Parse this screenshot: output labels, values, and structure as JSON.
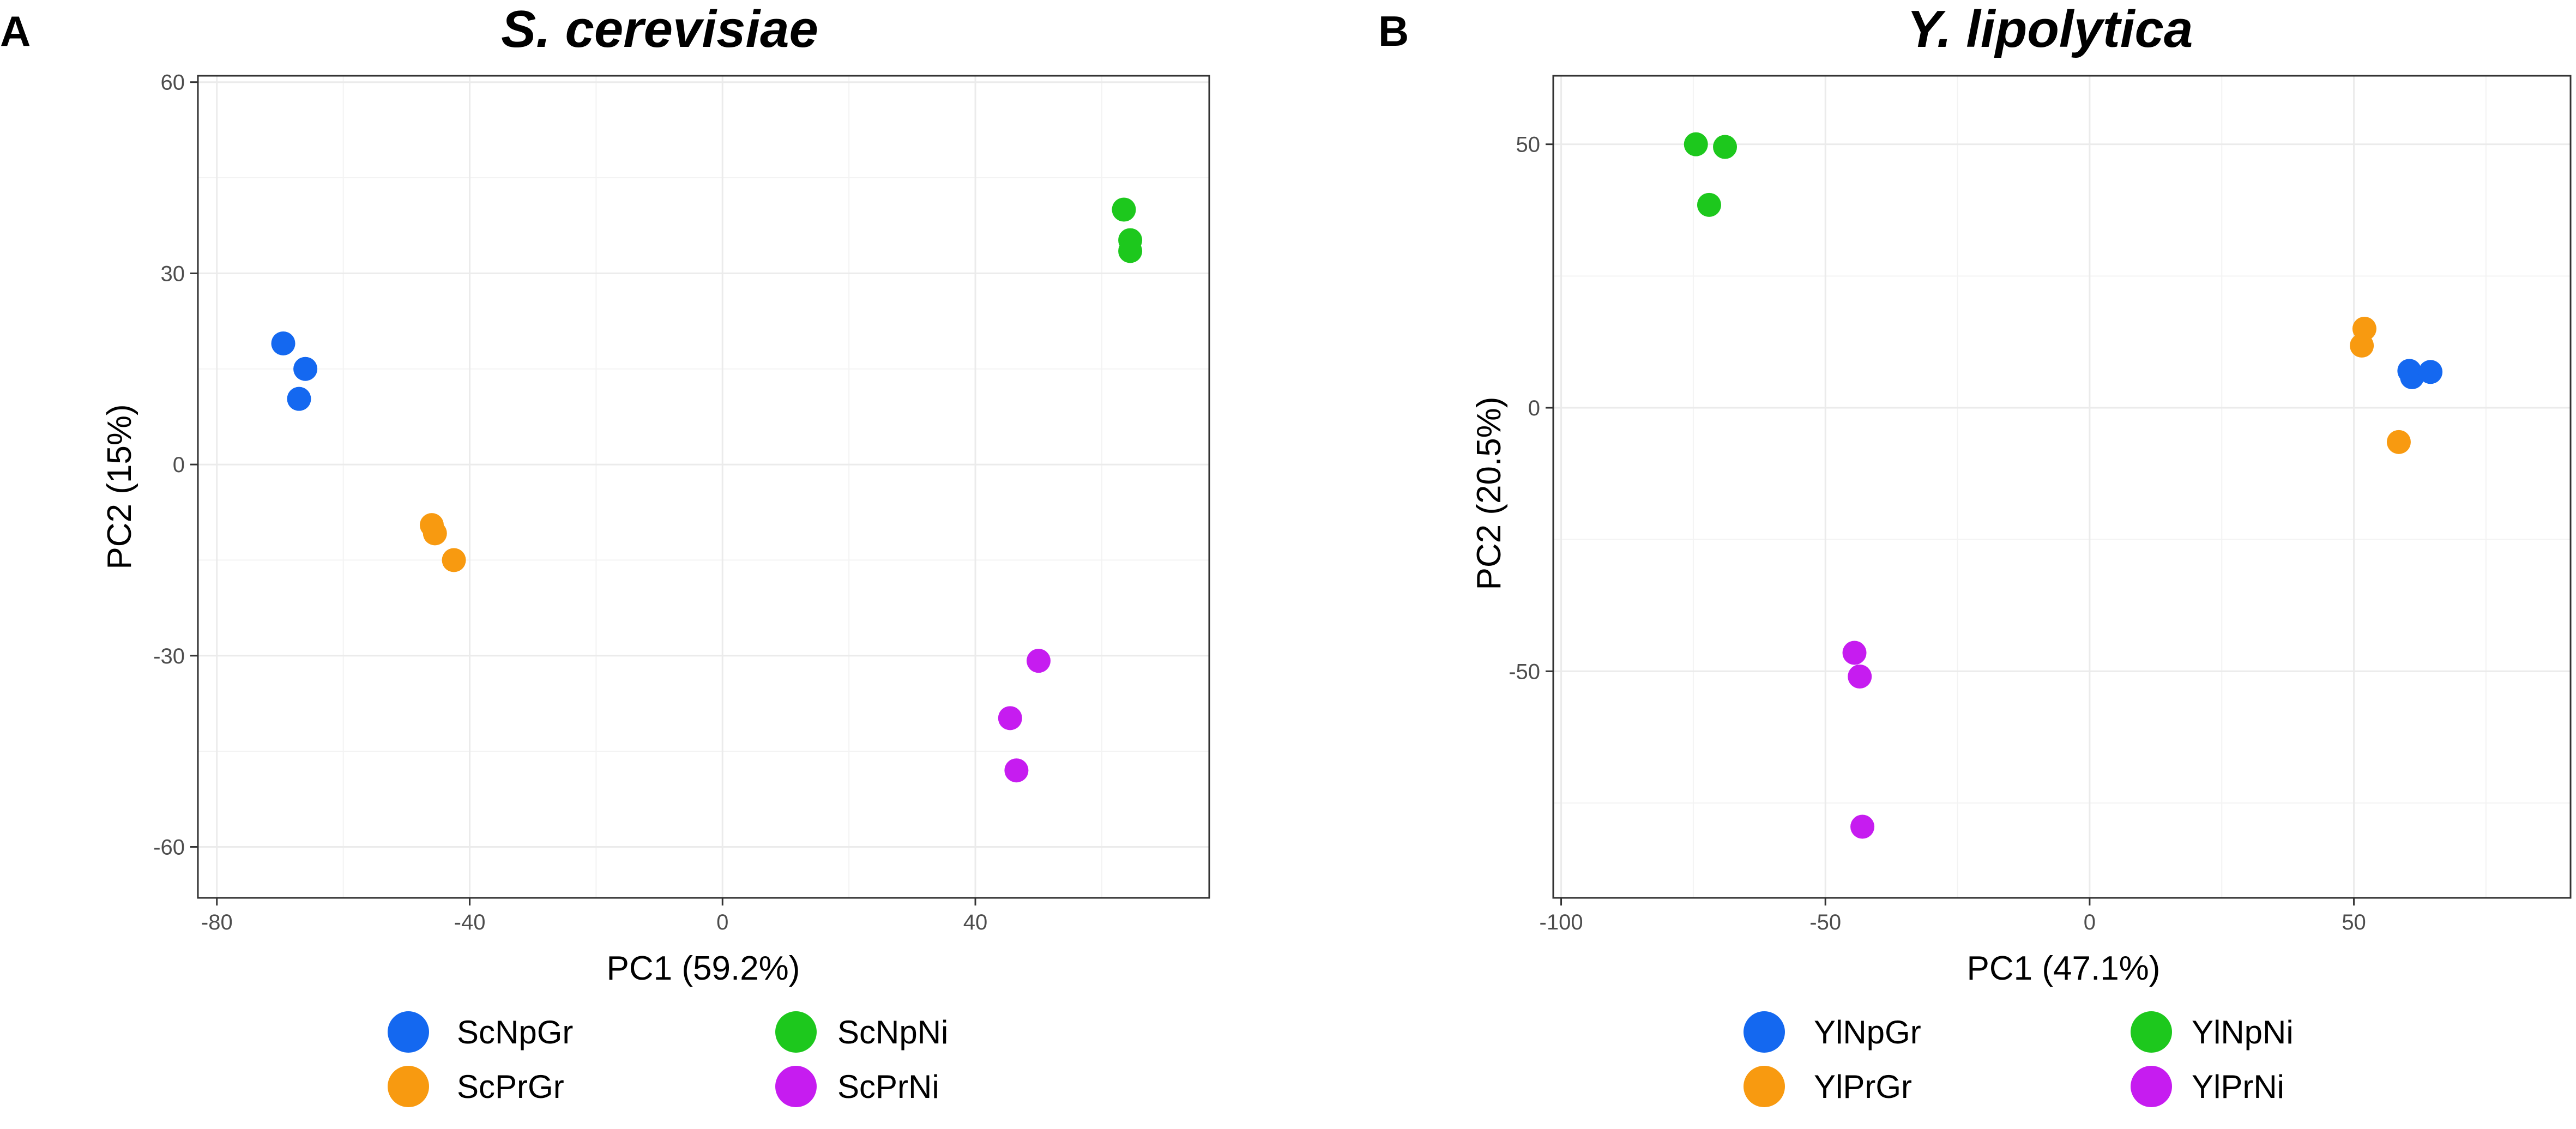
{
  "chart_data": [
    {
      "panel": "A",
      "type": "scatter",
      "title": "S. cerevisiae",
      "xlabel": "PC1 (59.2%)",
      "ylabel": "PC2 (15%)",
      "xlim": [
        -83,
        77
      ],
      "ylim": [
        -68,
        61
      ],
      "xticks": [
        -80,
        -40,
        0,
        40
      ],
      "xtick_labels": [
        "-80",
        "-40",
        "0",
        "40"
      ],
      "yticks": [
        -60,
        -30,
        0,
        30,
        60
      ],
      "ytick_labels": [
        "-60",
        "-30",
        "0",
        "30",
        "60"
      ],
      "grid": true,
      "legend_position": "bottom",
      "series": [
        {
          "name": "ScNpGr",
          "color": "#1468f0",
          "points": [
            [
              -69.5,
              19
            ],
            [
              -66,
              15
            ],
            [
              -67,
              10.3
            ]
          ]
        },
        {
          "name": "ScPrGr",
          "color": "#f89a10",
          "points": [
            [
              -46,
              -9.5
            ],
            [
              -45.5,
              -10.8
            ],
            [
              -42.5,
              -15
            ]
          ]
        },
        {
          "name": "ScNpNi",
          "color": "#1dc81d",
          "points": [
            [
              63.5,
              40
            ],
            [
              64.5,
              35.2
            ],
            [
              64.5,
              33.5
            ]
          ]
        },
        {
          "name": "ScPrNi",
          "color": "#c61cf0",
          "points": [
            [
              50,
              -30.8
            ],
            [
              45.5,
              -39.8
            ],
            [
              46.5,
              -48
            ]
          ]
        }
      ]
    },
    {
      "panel": "B",
      "type": "scatter",
      "title": "Y. lipolytica",
      "xlabel": "PC1 (47.1%)",
      "ylabel": "PC2 (20.5%)",
      "xlim": [
        -101.5,
        91
      ],
      "ylim": [
        -93,
        63
      ],
      "xticks": [
        -100,
        -50,
        0,
        50
      ],
      "xtick_labels": [
        "-100",
        "-50",
        "0",
        "50"
      ],
      "yticks": [
        -50,
        0,
        50
      ],
      "ytick_labels": [
        "-50",
        "0",
        "50"
      ],
      "grid": true,
      "legend_position": "bottom",
      "series": [
        {
          "name": "YlNpGr",
          "color": "#1468f0",
          "points": [
            [
              60.5,
              7
            ],
            [
              61,
              5.8
            ],
            [
              64.5,
              6.8
            ]
          ]
        },
        {
          "name": "YlPrGr",
          "color": "#f89a10",
          "points": [
            [
              52,
              15
            ],
            [
              51.5,
              11.8
            ],
            [
              58.5,
              -6.5
            ]
          ]
        },
        {
          "name": "YlNpNi",
          "color": "#1dc81d",
          "points": [
            [
              -74.5,
              50
            ],
            [
              -69,
              49.5
            ],
            [
              -72,
              38.5
            ]
          ]
        },
        {
          "name": "YlPrNi",
          "color": "#c61cf0",
          "points": [
            [
              -44.5,
              -46.5
            ],
            [
              -43.5,
              -51
            ],
            [
              -43,
              -79.5
            ]
          ]
        }
      ]
    }
  ]
}
